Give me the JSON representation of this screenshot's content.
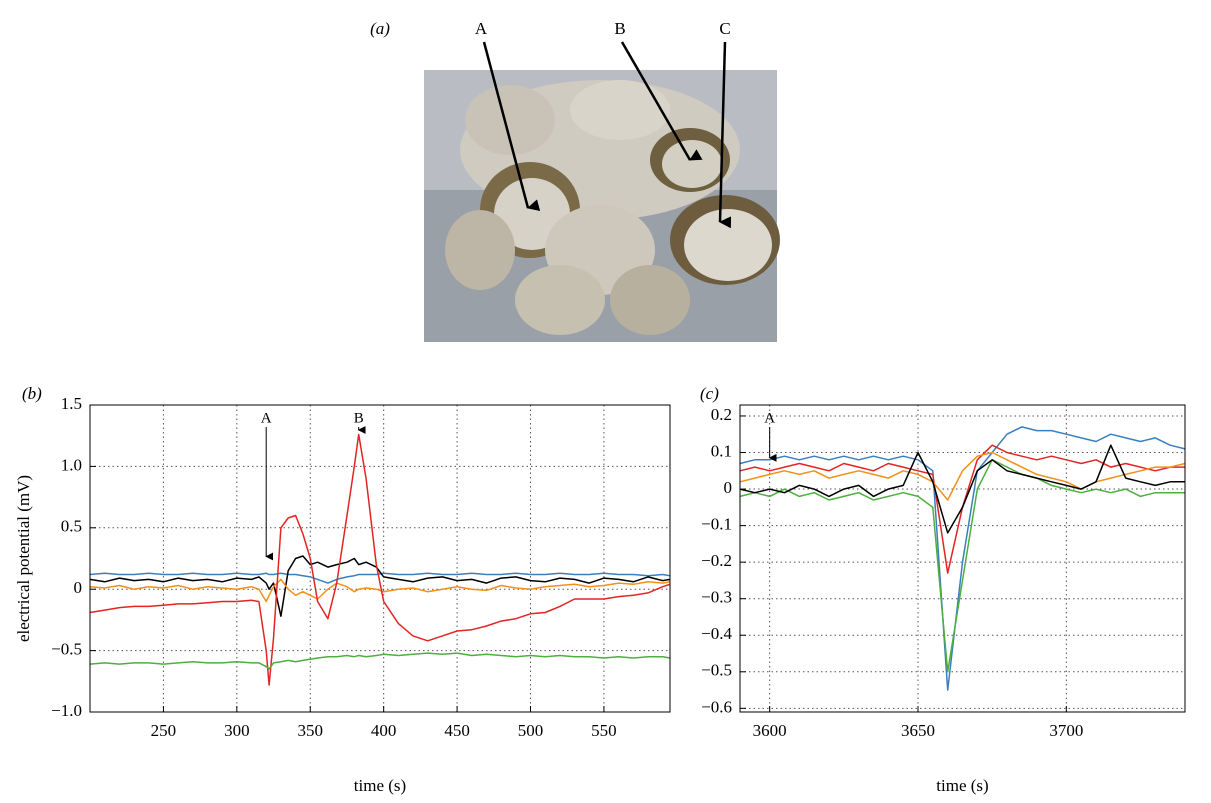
{
  "panel_a": {
    "label": "(a)",
    "markers": [
      "A",
      "B",
      "C"
    ]
  },
  "chart_data": [
    {
      "type": "line",
      "panel_label": "(b)",
      "ylabel": "electrical potential (mV)",
      "xlabel": "time (s)",
      "xlim": [
        200,
        595
      ],
      "ylim": [
        -1,
        1.5
      ],
      "grid": true,
      "xticks": [
        250,
        300,
        350,
        400,
        450,
        500,
        550
      ],
      "yticks": [
        {
          "value": -1,
          "label": "−1.0"
        },
        {
          "value": -0.5,
          "label": "−0.5"
        },
        0,
        0.5,
        {
          "value": 1,
          "label": "1.0"
        },
        1.5
      ],
      "annotations": [
        {
          "text": "A",
          "x": 320,
          "y": 0.25
        },
        {
          "text": "B",
          "x": 383,
          "y": 1.28
        }
      ],
      "x": [
        200,
        210,
        220,
        230,
        240,
        250,
        260,
        270,
        280,
        290,
        300,
        310,
        315,
        320,
        322,
        325,
        330,
        335,
        340,
        345,
        350,
        355,
        362,
        368,
        375,
        380,
        383,
        388,
        395,
        400,
        410,
        420,
        430,
        440,
        450,
        460,
        470,
        480,
        490,
        500,
        510,
        520,
        530,
        540,
        550,
        560,
        570,
        580,
        590,
        595
      ],
      "series": [
        {
          "name": "blue",
          "color": "#3a7fbf",
          "values": [
            0.12,
            0.13,
            0.12,
            0.12,
            0.13,
            0.12,
            0.12,
            0.13,
            0.12,
            0.12,
            0.13,
            0.12,
            0.12,
            0.13,
            0.12,
            0.12,
            0.13,
            0.12,
            0.12,
            0.11,
            0.1,
            0.08,
            0.05,
            0.08,
            0.1,
            0.11,
            0.12,
            0.12,
            0.12,
            0.13,
            0.12,
            0.12,
            0.13,
            0.12,
            0.12,
            0.13,
            0.12,
            0.12,
            0.13,
            0.12,
            0.12,
            0.13,
            0.12,
            0.12,
            0.13,
            0.12,
            0.12,
            0.11,
            0.12,
            0.11
          ]
        },
        {
          "name": "black",
          "color": "#000000",
          "values": [
            0.08,
            0.06,
            0.09,
            0.07,
            0.08,
            0.06,
            0.09,
            0.07,
            0.08,
            0.06,
            0.09,
            0.08,
            0.1,
            0.05,
            0.0,
            0.05,
            -0.22,
            0.15,
            0.25,
            0.27,
            0.2,
            0.22,
            0.18,
            0.2,
            0.22,
            0.25,
            0.2,
            0.22,
            0.18,
            0.1,
            0.08,
            0.06,
            0.09,
            0.1,
            0.07,
            0.08,
            0.05,
            0.09,
            0.1,
            0.07,
            0.06,
            0.09,
            0.08,
            0.05,
            0.09,
            0.08,
            0.06,
            0.1,
            0.07,
            0.08
          ]
        },
        {
          "name": "orange",
          "color": "#f39019",
          "values": [
            0.02,
            0.01,
            0.03,
            0.0,
            0.02,
            0.01,
            0.03,
            0.0,
            0.02,
            0.01,
            0.0,
            0.02,
            0.0,
            -0.1,
            -0.05,
            0.02,
            0.08,
            0.0,
            -0.05,
            -0.02,
            -0.05,
            -0.08,
            0.0,
            0.05,
            0.02,
            -0.02,
            0.0,
            0.01,
            0.0,
            -0.02,
            0.0,
            0.01,
            -0.02,
            0.0,
            0.02,
            0.0,
            -0.01,
            0.03,
            0.01,
            0.0,
            0.02,
            0.03,
            0.04,
            0.02,
            0.03,
            0.05,
            0.04,
            0.06,
            0.05,
            0.06
          ]
        },
        {
          "name": "red",
          "color": "#e32424",
          "values": [
            -0.19,
            -0.17,
            -0.15,
            -0.14,
            -0.14,
            -0.13,
            -0.12,
            -0.12,
            -0.11,
            -0.1,
            -0.1,
            -0.09,
            -0.1,
            -0.5,
            -0.78,
            -0.4,
            0.5,
            0.58,
            0.6,
            0.45,
            0.25,
            -0.1,
            -0.24,
            0.05,
            0.6,
            1.0,
            1.26,
            0.9,
            0.2,
            -0.1,
            -0.28,
            -0.38,
            -0.42,
            -0.38,
            -0.34,
            -0.33,
            -0.3,
            -0.26,
            -0.24,
            -0.2,
            -0.19,
            -0.14,
            -0.08,
            -0.08,
            -0.08,
            -0.06,
            -0.05,
            -0.03,
            0.02,
            0.04
          ]
        },
        {
          "name": "green",
          "color": "#4caf3e",
          "values": [
            -0.61,
            -0.6,
            -0.61,
            -0.6,
            -0.6,
            -0.61,
            -0.6,
            -0.59,
            -0.6,
            -0.6,
            -0.59,
            -0.6,
            -0.6,
            -0.63,
            -0.65,
            -0.6,
            -0.59,
            -0.58,
            -0.59,
            -0.58,
            -0.57,
            -0.56,
            -0.55,
            -0.55,
            -0.54,
            -0.55,
            -0.54,
            -0.55,
            -0.54,
            -0.53,
            -0.54,
            -0.53,
            -0.52,
            -0.53,
            -0.52,
            -0.54,
            -0.53,
            -0.54,
            -0.55,
            -0.54,
            -0.55,
            -0.54,
            -0.55,
            -0.55,
            -0.56,
            -0.55,
            -0.56,
            -0.55,
            -0.55,
            -0.56
          ]
        }
      ]
    },
    {
      "type": "line",
      "panel_label": "(c)",
      "xlabel": "time (s)",
      "xlim": [
        3590,
        3740
      ],
      "ylim": [
        -0.61,
        0.23
      ],
      "grid": true,
      "xticks": [
        3600,
        3650,
        3700
      ],
      "yticks": [
        {
          "value": -0.6,
          "label": "−0.6"
        },
        {
          "value": -0.5,
          "label": "−0.5"
        },
        {
          "value": -0.4,
          "label": "−0.4"
        },
        {
          "value": -0.3,
          "label": "−0.3"
        },
        {
          "value": -0.2,
          "label": "−0.2"
        },
        {
          "value": -0.1,
          "label": "−0.1"
        },
        0,
        0.1,
        0.2
      ],
      "annotations": [
        {
          "text": "A",
          "x": 3600,
          "y": 0.08
        }
      ],
      "x": [
        3590,
        3595,
        3600,
        3605,
        3610,
        3615,
        3620,
        3625,
        3630,
        3635,
        3640,
        3645,
        3650,
        3655,
        3660,
        3665,
        3670,
        3675,
        3680,
        3685,
        3690,
        3695,
        3700,
        3705,
        3710,
        3715,
        3720,
        3725,
        3730,
        3735,
        3740
      ],
      "series": [
        {
          "name": "blue",
          "color": "#3a7fbf",
          "values": [
            0.07,
            0.08,
            0.08,
            0.09,
            0.08,
            0.09,
            0.08,
            0.09,
            0.08,
            0.09,
            0.08,
            0.09,
            0.08,
            0.05,
            -0.55,
            -0.2,
            0.05,
            0.1,
            0.15,
            0.17,
            0.16,
            0.16,
            0.15,
            0.14,
            0.13,
            0.15,
            0.14,
            0.13,
            0.14,
            0.12,
            0.11
          ]
        },
        {
          "name": "green",
          "color": "#4caf3e",
          "values": [
            -0.02,
            -0.01,
            -0.02,
            0,
            -0.02,
            -0.01,
            -0.03,
            -0.02,
            -0.01,
            -0.03,
            -0.02,
            -0.01,
            -0.02,
            -0.05,
            -0.5,
            -0.25,
            0.0,
            0.08,
            0.06,
            0.04,
            0.03,
            0.01,
            0.0,
            -0.01,
            0.0,
            -0.01,
            0.0,
            -0.02,
            -0.01,
            -0.01,
            -0.01
          ]
        },
        {
          "name": "red",
          "color": "#e32424",
          "values": [
            0.05,
            0.06,
            0.05,
            0.06,
            0.07,
            0.06,
            0.05,
            0.07,
            0.06,
            0.05,
            0.07,
            0.06,
            0.05,
            0.04,
            -0.23,
            -0.05,
            0.08,
            0.12,
            0.1,
            0.09,
            0.08,
            0.09,
            0.08,
            0.07,
            0.08,
            0.06,
            0.07,
            0.06,
            0.05,
            0.06,
            0.06
          ]
        },
        {
          "name": "orange",
          "color": "#f39019",
          "values": [
            0.02,
            0.03,
            0.04,
            0.05,
            0.04,
            0.05,
            0.03,
            0.04,
            0.05,
            0.04,
            0.03,
            0.05,
            0.04,
            0.02,
            -0.03,
            0.05,
            0.09,
            0.1,
            0.08,
            0.06,
            0.04,
            0.03,
            0.02,
            0.0,
            0.02,
            0.03,
            0.04,
            0.05,
            0.06,
            0.06,
            0.07
          ]
        },
        {
          "name": "black",
          "color": "#000000",
          "values": [
            0,
            -0.01,
            0,
            -0.01,
            0.01,
            0,
            -0.02,
            0,
            0.01,
            -0.02,
            0,
            0.01,
            0.1,
            0.02,
            -0.12,
            -0.05,
            0.05,
            0.08,
            0.05,
            0.04,
            0.03,
            0.02,
            0.01,
            0,
            0.02,
            0.12,
            0.03,
            0.02,
            0.01,
            0.02,
            0.02
          ]
        }
      ]
    }
  ]
}
